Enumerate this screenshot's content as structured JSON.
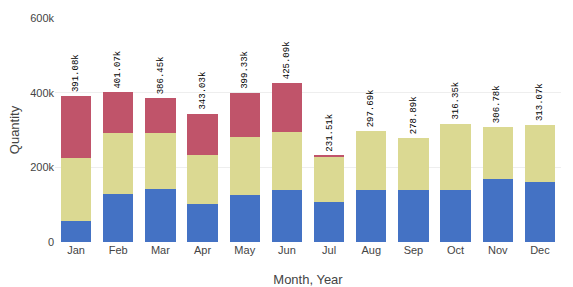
{
  "chart_data": {
    "type": "bar",
    "stacked": true,
    "categories": [
      "Jan",
      "Feb",
      "Mar",
      "Apr",
      "May",
      "Jun",
      "Jul",
      "Aug",
      "Sep",
      "Oct",
      "Nov",
      "Dec"
    ],
    "series": [
      {
        "color": "#4472c4",
        "values": [
          55000,
          128000,
          143000,
          103000,
          127000,
          140000,
          108000,
          138000,
          138000,
          138000,
          168000,
          160000
        ]
      },
      {
        "color": "#dbd992",
        "values": [
          171000,
          163000,
          148000,
          131000,
          153000,
          155000,
          120000,
          159000,
          141000,
          178000,
          139000,
          153000
        ]
      },
      {
        "color": "#c0546a",
        "values": [
          165000,
          110000,
          95000,
          109000,
          119000,
          130000,
          3500,
          0,
          0,
          0,
          0,
          0
        ]
      }
    ],
    "annotations": [
      "391.08k",
      "401.07k",
      "386.45k",
      "343.03k",
      "399.33k",
      "425.09k",
      "231.51k",
      "297.69k",
      "278.89k",
      "316.35k",
      "306.78k",
      "313.07k"
    ],
    "xlabel": "Month, Year",
    "ylabel": "Quantity",
    "ylim": [
      0,
      600000
    ],
    "yticks": [
      0,
      {
        "value": 200000,
        "label": "200k"
      },
      {
        "value": 400000,
        "label": "400k"
      },
      {
        "value": 600000,
        "label": "600k"
      }
    ],
    "grid": true
  }
}
